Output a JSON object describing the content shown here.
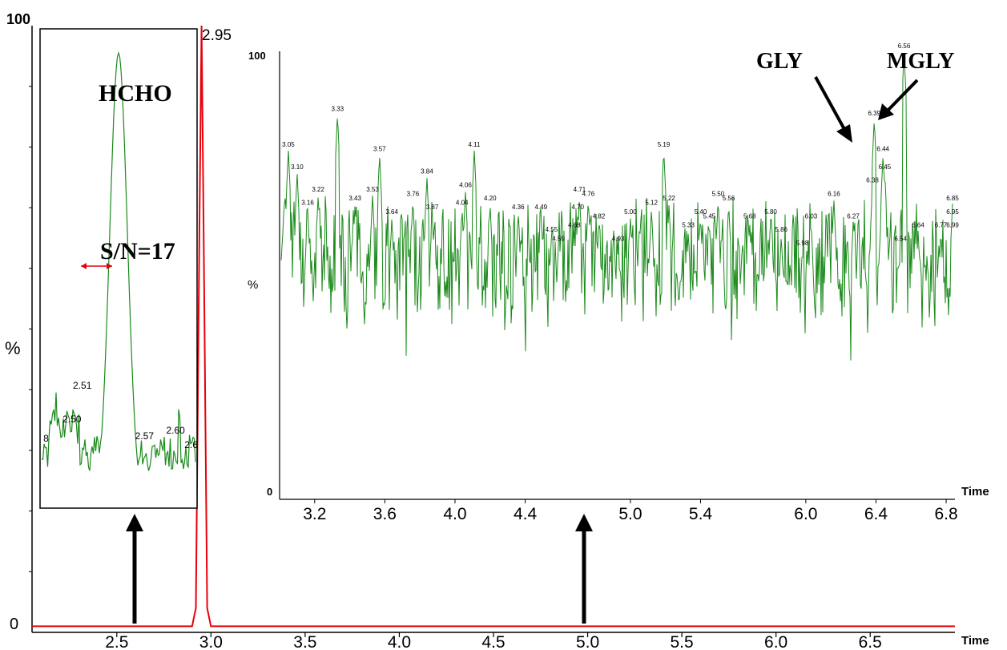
{
  "chart_data": [
    {
      "type": "line",
      "xlabel": "Time",
      "ylabel": "%",
      "y_top_label": "100",
      "y_zero_label": "0",
      "xlim": [
        2.05,
        6.95
      ],
      "x_ticks": [
        "2.5",
        "3.0",
        "3.5",
        "4.0",
        "4.5",
        "5.0",
        "5.5",
        "6.0",
        "6.5"
      ],
      "series": [
        {
          "color": "#e8000b",
          "x": [
            2.05,
            2.9,
            2.92,
            2.94,
            2.95,
            2.96,
            2.98,
            3.0,
            6.95
          ],
          "y": [
            1,
            1,
            4,
            70,
            100,
            70,
            4,
            1,
            1
          ]
        }
      ],
      "peak_labels": [
        {
          "x": 2.95,
          "text": "2.95"
        }
      ]
    },
    {
      "type": "line",
      "xlabel": "Time",
      "ylabel": "%",
      "y_top_label": "100",
      "y_zero_label": "0",
      "xlim": [
        3.0,
        6.85
      ],
      "x_ticks": [
        "3.2",
        "3.6",
        "4.0",
        "4.4",
        "5.0",
        "5.4",
        "6.0",
        "6.4",
        "6.8"
      ],
      "series": [
        {
          "color": "#1a8a1a",
          "noise_mean": 53,
          "noise_amplitude": 11
        }
      ],
      "peaks": [
        {
          "x": 3.05,
          "y": 78,
          "label": "3.05"
        },
        {
          "x": 3.1,
          "y": 73,
          "label": "3.10"
        },
        {
          "x": 3.16,
          "y": 65,
          "label": "3.16"
        },
        {
          "x": 3.22,
          "y": 68,
          "label": "3.22"
        },
        {
          "x": 3.33,
          "y": 86,
          "label": "3.33"
        },
        {
          "x": 3.43,
          "y": 66,
          "label": "3.43"
        },
        {
          "x": 3.53,
          "y": 68,
          "label": "3.53"
        },
        {
          "x": 3.57,
          "y": 77,
          "label": "3.57"
        },
        {
          "x": 3.64,
          "y": 63,
          "label": "3.64"
        },
        {
          "x": 3.76,
          "y": 67,
          "label": "3.76"
        },
        {
          "x": 3.84,
          "y": 72,
          "label": "3.84"
        },
        {
          "x": 3.87,
          "y": 64,
          "label": "3.87"
        },
        {
          "x": 4.04,
          "y": 65,
          "label": "4.04"
        },
        {
          "x": 4.06,
          "y": 69,
          "label": "4.06"
        },
        {
          "x": 4.11,
          "y": 78,
          "label": "4.11"
        },
        {
          "x": 4.2,
          "y": 66,
          "label": "4.20"
        },
        {
          "x": 4.36,
          "y": 64,
          "label": "4.36"
        },
        {
          "x": 4.49,
          "y": 64,
          "label": "4.49"
        },
        {
          "x": 4.55,
          "y": 59,
          "label": "4.55"
        },
        {
          "x": 4.59,
          "y": 57,
          "label": "4.59"
        },
        {
          "x": 4.68,
          "y": 60,
          "label": "4.68"
        },
        {
          "x": 4.7,
          "y": 64,
          "label": "4.70"
        },
        {
          "x": 4.71,
          "y": 68,
          "label": "4.71"
        },
        {
          "x": 4.76,
          "y": 67,
          "label": "4.76"
        },
        {
          "x": 4.82,
          "y": 62,
          "label": "4.82"
        },
        {
          "x": 4.93,
          "y": 57,
          "label": "4.93"
        },
        {
          "x": 5.0,
          "y": 63,
          "label": "5.00"
        },
        {
          "x": 5.12,
          "y": 65,
          "label": "5.12"
        },
        {
          "x": 5.19,
          "y": 78,
          "label": "5.19"
        },
        {
          "x": 5.22,
          "y": 66,
          "label": "5.22"
        },
        {
          "x": 5.33,
          "y": 60,
          "label": "5.33"
        },
        {
          "x": 5.4,
          "y": 63,
          "label": "5.40"
        },
        {
          "x": 5.45,
          "y": 62,
          "label": "5.45"
        },
        {
          "x": 5.5,
          "y": 67,
          "label": "5.50"
        },
        {
          "x": 5.56,
          "y": 66,
          "label": "5.56"
        },
        {
          "x": 5.68,
          "y": 62,
          "label": "5.68"
        },
        {
          "x": 5.8,
          "y": 63,
          "label": "5.80"
        },
        {
          "x": 5.86,
          "y": 59,
          "label": "5.86"
        },
        {
          "x": 5.98,
          "y": 56,
          "label": "5.98"
        },
        {
          "x": 6.03,
          "y": 62,
          "label": "6.03"
        },
        {
          "x": 6.16,
          "y": 67,
          "label": "6.16"
        },
        {
          "x": 6.27,
          "y": 62,
          "label": "6.27"
        },
        {
          "x": 6.38,
          "y": 70,
          "label": "6.38"
        },
        {
          "x": 6.39,
          "y": 85,
          "label": "6.39"
        },
        {
          "x": 6.44,
          "y": 77,
          "label": "6.44"
        },
        {
          "x": 6.45,
          "y": 73,
          "label": "6.45"
        },
        {
          "x": 6.54,
          "y": 57,
          "label": "6.54"
        },
        {
          "x": 6.56,
          "y": 100,
          "label": "6.56"
        },
        {
          "x": 6.64,
          "y": 60,
          "label": "6.64"
        },
        {
          "x": 6.77,
          "y": 60,
          "label": "6.77"
        },
        {
          "x": 6.85,
          "y": 66,
          "label": "6.85"
        },
        {
          "x": 6.95,
          "y": 63,
          "label": "6.95"
        },
        {
          "x": 6.99,
          "y": 60,
          "label": "6.99"
        }
      ],
      "annotations": {
        "gly": "GLY",
        "mgly": "MGLY"
      }
    },
    {
      "type": "line",
      "xlim": [
        2.47,
        2.62
      ],
      "series": [
        {
          "color": "#1a8a1a"
        }
      ],
      "peak": {
        "x": 2.545,
        "y": 100
      },
      "peak_labels": [
        {
          "x": 2.475,
          "text": "8"
        },
        {
          "x": 2.5,
          "text": "2.50"
        },
        {
          "x": 2.51,
          "text": "2.51"
        },
        {
          "x": 2.57,
          "text": "2.57"
        },
        {
          "x": 2.6,
          "text": "2.60"
        },
        {
          "x": 2.615,
          "text": "2.6"
        }
      ],
      "annotations": {
        "title": "HCHO",
        "sn": "S/N=17"
      }
    }
  ]
}
